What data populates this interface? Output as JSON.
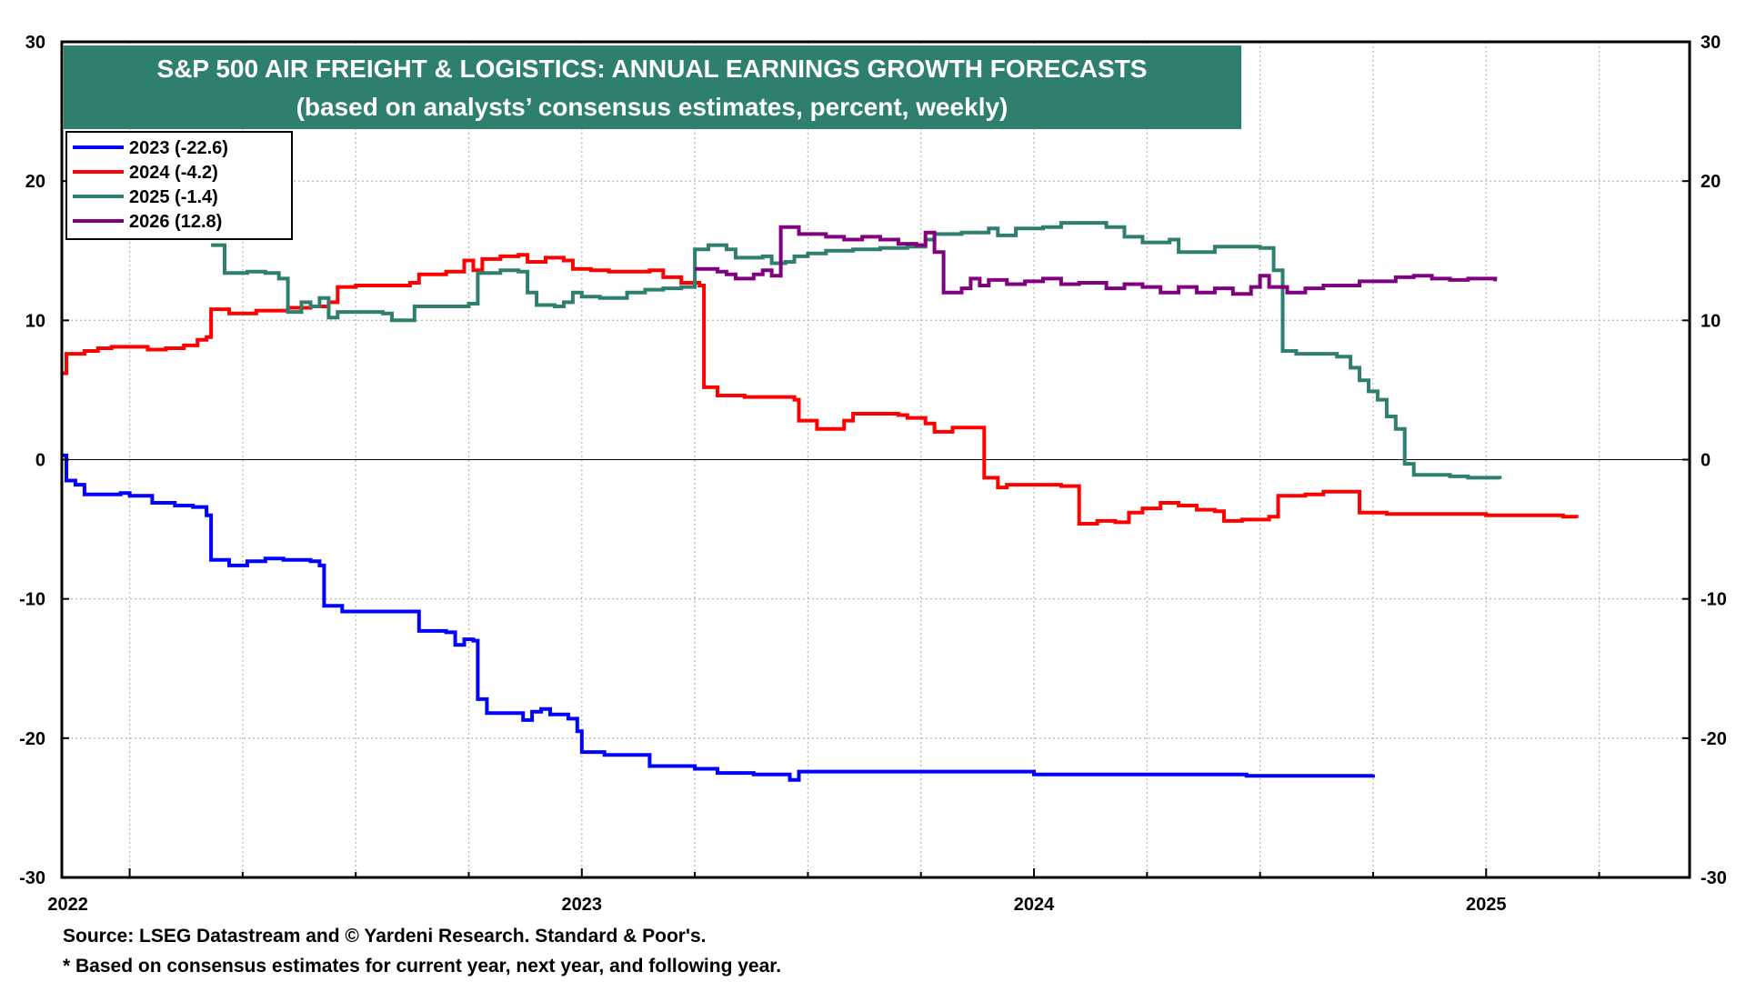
{
  "chart_data": {
    "type": "line",
    "title": "S&P 500 AIR FREIGHT & LOGISTICS: ANNUAL EARNINGS GROWTH FORECASTS",
    "subtitle": "(based on analysts’ consensus estimates, percent, weekly)",
    "ylim": [
      -30,
      30
    ],
    "yticks": [
      30,
      20,
      10,
      0,
      -10,
      -20,
      -30
    ],
    "ytick_labels": [
      "30",
      "20",
      "10",
      "0",
      "-10",
      "-20",
      "-30"
    ],
    "xlim": [
      2021.85,
      2025.45
    ],
    "xticks": [
      2022,
      2023,
      2024,
      2025
    ],
    "xtick_labels": [
      "2022",
      "2023",
      "2024",
      "2025"
    ],
    "grid": true,
    "legend_position": "top-left",
    "title_box_color": "#2e7f6e",
    "series": [
      {
        "name": "2023 (-22.6)",
        "color": "#0000ff",
        "points": [
          [
            2021.85,
            0.3
          ],
          [
            2021.86,
            -1.5
          ],
          [
            2021.88,
            -1.8
          ],
          [
            2021.9,
            -2.5
          ],
          [
            2021.96,
            -2.5
          ],
          [
            2021.98,
            -2.4
          ],
          [
            2022.0,
            -2.6
          ],
          [
            2022.05,
            -3.1
          ],
          [
            2022.1,
            -3.3
          ],
          [
            2022.14,
            -3.4
          ],
          [
            2022.17,
            -4.0
          ],
          [
            2022.18,
            -7.2
          ],
          [
            2022.22,
            -7.6
          ],
          [
            2022.26,
            -7.3
          ],
          [
            2022.3,
            -7.1
          ],
          [
            2022.34,
            -7.2
          ],
          [
            2022.4,
            -7.3
          ],
          [
            2022.42,
            -7.6
          ],
          [
            2022.43,
            -10.5
          ],
          [
            2022.47,
            -10.9
          ],
          [
            2022.52,
            -10.9
          ],
          [
            2022.58,
            -10.9
          ],
          [
            2022.63,
            -10.9
          ],
          [
            2022.64,
            -12.3
          ],
          [
            2022.7,
            -12.4
          ],
          [
            2022.72,
            -13.3
          ],
          [
            2022.74,
            -12.9
          ],
          [
            2022.76,
            -13.0
          ],
          [
            2022.77,
            -17.2
          ],
          [
            2022.79,
            -18.2
          ],
          [
            2022.85,
            -18.2
          ],
          [
            2022.87,
            -18.7
          ],
          [
            2022.89,
            -18.1
          ],
          [
            2022.91,
            -17.9
          ],
          [
            2022.93,
            -18.3
          ],
          [
            2022.97,
            -18.6
          ],
          [
            2022.99,
            -19.5
          ],
          [
            2023.0,
            -21.0
          ],
          [
            2023.05,
            -21.2
          ],
          [
            2023.1,
            -21.2
          ],
          [
            2023.14,
            -21.2
          ],
          [
            2023.15,
            -22.0
          ],
          [
            2023.22,
            -22.0
          ],
          [
            2023.25,
            -22.2
          ],
          [
            2023.3,
            -22.5
          ],
          [
            2023.38,
            -22.6
          ],
          [
            2023.44,
            -22.6
          ],
          [
            2023.46,
            -23.0
          ],
          [
            2023.48,
            -22.4
          ],
          [
            2023.55,
            -22.4
          ],
          [
            2023.65,
            -22.4
          ],
          [
            2023.75,
            -22.4
          ],
          [
            2023.85,
            -22.4
          ],
          [
            2023.99,
            -22.4
          ],
          [
            2024.0,
            -22.6
          ],
          [
            2024.2,
            -22.6
          ],
          [
            2024.47,
            -22.7
          ],
          [
            2024.75,
            -22.6
          ]
        ]
      },
      {
        "name": "2024 (-4.2)",
        "color": "#ff0000",
        "points": [
          [
            2021.85,
            6.2
          ],
          [
            2021.86,
            7.6
          ],
          [
            2021.9,
            7.8
          ],
          [
            2021.93,
            8.0
          ],
          [
            2021.96,
            8.1
          ],
          [
            2022.0,
            8.1
          ],
          [
            2022.04,
            7.9
          ],
          [
            2022.08,
            8.0
          ],
          [
            2022.12,
            8.2
          ],
          [
            2022.15,
            8.6
          ],
          [
            2022.17,
            8.8
          ],
          [
            2022.18,
            10.8
          ],
          [
            2022.22,
            10.5
          ],
          [
            2022.28,
            10.7
          ],
          [
            2022.35,
            10.9
          ],
          [
            2022.4,
            11.0
          ],
          [
            2022.44,
            11.3
          ],
          [
            2022.46,
            12.4
          ],
          [
            2022.5,
            12.5
          ],
          [
            2022.58,
            12.5
          ],
          [
            2022.62,
            12.7
          ],
          [
            2022.64,
            13.3
          ],
          [
            2022.7,
            13.5
          ],
          [
            2022.74,
            14.3
          ],
          [
            2022.76,
            13.6
          ],
          [
            2022.78,
            14.4
          ],
          [
            2022.82,
            14.6
          ],
          [
            2022.86,
            14.7
          ],
          [
            2022.88,
            14.2
          ],
          [
            2022.92,
            14.5
          ],
          [
            2022.96,
            14.3
          ],
          [
            2022.98,
            13.7
          ],
          [
            2023.02,
            13.6
          ],
          [
            2023.06,
            13.5
          ],
          [
            2023.1,
            13.5
          ],
          [
            2023.15,
            13.6
          ],
          [
            2023.18,
            13.1
          ],
          [
            2023.22,
            12.7
          ],
          [
            2023.26,
            12.5
          ],
          [
            2023.27,
            5.2
          ],
          [
            2023.3,
            4.6
          ],
          [
            2023.36,
            4.5
          ],
          [
            2023.42,
            4.5
          ],
          [
            2023.47,
            4.3
          ],
          [
            2023.48,
            2.8
          ],
          [
            2023.52,
            2.2
          ],
          [
            2023.56,
            2.2
          ],
          [
            2023.58,
            2.8
          ],
          [
            2023.6,
            3.3
          ],
          [
            2023.66,
            3.3
          ],
          [
            2023.7,
            3.2
          ],
          [
            2023.72,
            3.0
          ],
          [
            2023.76,
            2.6
          ],
          [
            2023.78,
            2.0
          ],
          [
            2023.82,
            2.3
          ],
          [
            2023.88,
            2.3
          ],
          [
            2023.89,
            -1.3
          ],
          [
            2023.92,
            -2.0
          ],
          [
            2023.94,
            -1.8
          ],
          [
            2024.0,
            -1.8
          ],
          [
            2024.06,
            -1.9
          ],
          [
            2024.09,
            -1.9
          ],
          [
            2024.1,
            -4.6
          ],
          [
            2024.14,
            -4.4
          ],
          [
            2024.18,
            -4.5
          ],
          [
            2024.21,
            -3.8
          ],
          [
            2024.24,
            -3.5
          ],
          [
            2024.28,
            -3.1
          ],
          [
            2024.32,
            -3.3
          ],
          [
            2024.36,
            -3.6
          ],
          [
            2024.4,
            -3.7
          ],
          [
            2024.42,
            -4.4
          ],
          [
            2024.46,
            -4.3
          ],
          [
            2024.52,
            -4.1
          ],
          [
            2024.54,
            -2.6
          ],
          [
            2024.6,
            -2.5
          ],
          [
            2024.64,
            -2.3
          ],
          [
            2024.7,
            -2.3
          ],
          [
            2024.72,
            -3.8
          ],
          [
            2024.78,
            -3.9
          ],
          [
            2024.9,
            -3.9
          ],
          [
            2025.0,
            -4.0
          ],
          [
            2025.1,
            -4.0
          ],
          [
            2025.15,
            -4.0
          ],
          [
            2025.17,
            -4.1
          ],
          [
            2025.2,
            -4.2
          ]
        ]
      },
      {
        "name": "2025 (-1.4)",
        "color": "#2e7f6e",
        "points": [
          [
            2022.18,
            15.4
          ],
          [
            2022.21,
            13.4
          ],
          [
            2022.26,
            13.5
          ],
          [
            2022.3,
            13.4
          ],
          [
            2022.33,
            13.0
          ],
          [
            2022.35,
            10.6
          ],
          [
            2022.38,
            11.3
          ],
          [
            2022.4,
            11.0
          ],
          [
            2022.42,
            11.6
          ],
          [
            2022.44,
            10.2
          ],
          [
            2022.46,
            10.6
          ],
          [
            2022.52,
            10.6
          ],
          [
            2022.56,
            10.5
          ],
          [
            2022.58,
            10.0
          ],
          [
            2022.62,
            10.0
          ],
          [
            2022.63,
            11.0
          ],
          [
            2022.68,
            11.0
          ],
          [
            2022.72,
            11.0
          ],
          [
            2022.75,
            11.2
          ],
          [
            2022.77,
            13.4
          ],
          [
            2022.82,
            13.6
          ],
          [
            2022.86,
            13.5
          ],
          [
            2022.88,
            12.0
          ],
          [
            2022.9,
            11.1
          ],
          [
            2022.94,
            11.0
          ],
          [
            2022.96,
            11.3
          ],
          [
            2022.98,
            12.0
          ],
          [
            2023.0,
            11.7
          ],
          [
            2023.04,
            11.6
          ],
          [
            2023.08,
            11.6
          ],
          [
            2023.1,
            12.0
          ],
          [
            2023.14,
            12.2
          ],
          [
            2023.18,
            12.3
          ],
          [
            2023.22,
            12.4
          ],
          [
            2023.24,
            12.4
          ],
          [
            2023.25,
            15.1
          ],
          [
            2023.28,
            15.4
          ],
          [
            2023.32,
            15.1
          ],
          [
            2023.34,
            14.5
          ],
          [
            2023.38,
            14.5
          ],
          [
            2023.4,
            14.6
          ],
          [
            2023.42,
            14.1
          ],
          [
            2023.45,
            14.2
          ],
          [
            2023.47,
            14.6
          ],
          [
            2023.5,
            14.8
          ],
          [
            2023.54,
            15.0
          ],
          [
            2023.6,
            15.1
          ],
          [
            2023.66,
            15.2
          ],
          [
            2023.72,
            15.3
          ],
          [
            2023.76,
            15.8
          ],
          [
            2023.78,
            16.2
          ],
          [
            2023.84,
            16.3
          ],
          [
            2023.9,
            16.6
          ],
          [
            2023.92,
            16.1
          ],
          [
            2023.96,
            16.6
          ],
          [
            2024.02,
            16.7
          ],
          [
            2024.06,
            17.0
          ],
          [
            2024.1,
            17.0
          ],
          [
            2024.16,
            16.7
          ],
          [
            2024.2,
            16.0
          ],
          [
            2024.24,
            15.6
          ],
          [
            2024.3,
            15.8
          ],
          [
            2024.32,
            14.9
          ],
          [
            2024.38,
            14.9
          ],
          [
            2024.4,
            15.3
          ],
          [
            2024.46,
            15.3
          ],
          [
            2024.5,
            15.2
          ],
          [
            2024.53,
            13.6
          ],
          [
            2024.55,
            7.8
          ],
          [
            2024.58,
            7.6
          ],
          [
            2024.63,
            7.6
          ],
          [
            2024.67,
            7.4
          ],
          [
            2024.7,
            6.6
          ],
          [
            2024.72,
            5.7
          ],
          [
            2024.74,
            4.9
          ],
          [
            2024.76,
            4.3
          ],
          [
            2024.78,
            3.1
          ],
          [
            2024.8,
            2.2
          ],
          [
            2024.82,
            -0.3
          ],
          [
            2024.84,
            -1.1
          ],
          [
            2024.88,
            -1.1
          ],
          [
            2024.92,
            -1.2
          ],
          [
            2024.96,
            -1.3
          ],
          [
            2025.0,
            -1.3
          ],
          [
            2025.03,
            -1.4
          ]
        ]
      },
      {
        "name": "2026 (12.8)",
        "color": "#800080",
        "points": [
          [
            2023.25,
            13.7
          ],
          [
            2023.3,
            13.5
          ],
          [
            2023.32,
            13.3
          ],
          [
            2023.34,
            13.0
          ],
          [
            2023.38,
            13.3
          ],
          [
            2023.4,
            13.6
          ],
          [
            2023.42,
            13.2
          ],
          [
            2023.44,
            16.7
          ],
          [
            2023.48,
            16.2
          ],
          [
            2023.54,
            16.0
          ],
          [
            2023.58,
            15.8
          ],
          [
            2023.62,
            16.0
          ],
          [
            2023.66,
            15.8
          ],
          [
            2023.7,
            15.5
          ],
          [
            2023.74,
            15.4
          ],
          [
            2023.76,
            16.3
          ],
          [
            2023.78,
            14.9
          ],
          [
            2023.8,
            12.0
          ],
          [
            2023.84,
            12.3
          ],
          [
            2023.86,
            13.0
          ],
          [
            2023.88,
            12.5
          ],
          [
            2023.9,
            12.9
          ],
          [
            2023.94,
            12.6
          ],
          [
            2023.98,
            12.8
          ],
          [
            2024.02,
            13.0
          ],
          [
            2024.06,
            12.6
          ],
          [
            2024.1,
            12.7
          ],
          [
            2024.14,
            12.7
          ],
          [
            2024.16,
            12.3
          ],
          [
            2024.2,
            12.6
          ],
          [
            2024.24,
            12.4
          ],
          [
            2024.28,
            12.0
          ],
          [
            2024.32,
            12.4
          ],
          [
            2024.36,
            12.0
          ],
          [
            2024.4,
            12.3
          ],
          [
            2024.44,
            11.9
          ],
          [
            2024.48,
            12.4
          ],
          [
            2024.5,
            13.2
          ],
          [
            2024.52,
            12.4
          ],
          [
            2024.56,
            12.0
          ],
          [
            2024.6,
            12.3
          ],
          [
            2024.64,
            12.5
          ],
          [
            2024.68,
            12.5
          ],
          [
            2024.72,
            12.8
          ],
          [
            2024.76,
            12.8
          ],
          [
            2024.8,
            13.1
          ],
          [
            2024.84,
            13.2
          ],
          [
            2024.88,
            13.0
          ],
          [
            2024.92,
            12.9
          ],
          [
            2024.96,
            13.0
          ],
          [
            2025.0,
            13.0
          ],
          [
            2025.02,
            12.8
          ]
        ]
      }
    ]
  },
  "footer": {
    "source": "Source: LSEG Datastream and © Yardeni Research. Standard & Poor's.",
    "note": "* Based on consensus estimates for current year, next year, and following year."
  }
}
